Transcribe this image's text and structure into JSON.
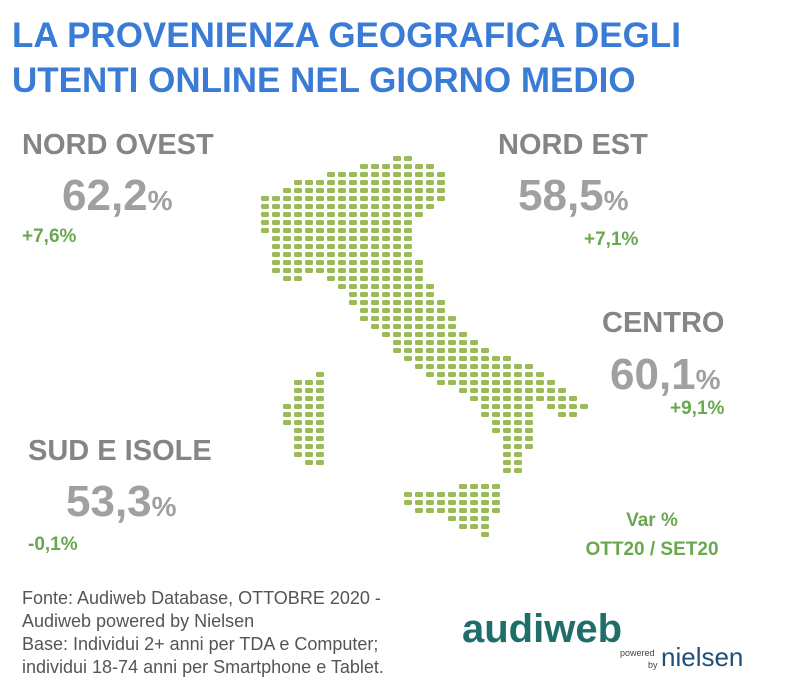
{
  "title": [
    "LA PROVENIENZA GEOGRAFICA DEGLI",
    "UTENTI ONLINE NEL GIORNO MEDIO"
  ],
  "regions": [
    {
      "name": "NORD OVEST",
      "value": "62,2",
      "unit": "%",
      "change": "+7,6%"
    },
    {
      "name": "NORD EST",
      "value": "58,5",
      "unit": "%",
      "change": "+7,1%"
    },
    {
      "name": "CENTRO",
      "value": "60,1",
      "unit": "%",
      "change": "+9,1%"
    },
    {
      "name": "SUD E ISOLE",
      "value": "53,3",
      "unit": "%",
      "change": "-0,1%"
    }
  ],
  "legend": [
    "Var %",
    "OTT20 / SET20"
  ],
  "footer": [
    "Fonte: Audiweb Database, OTTOBRE 2020 -",
    "Audiweb powered by Nielsen",
    "Base: Individui 2+ anni per TDA e Computer;",
    "individui 18-74 anni per Smartphone e Tablet."
  ],
  "logo": {
    "brand": "audiweb",
    "powered": "powered",
    "by": "by",
    "partner": "nielsen"
  }
}
